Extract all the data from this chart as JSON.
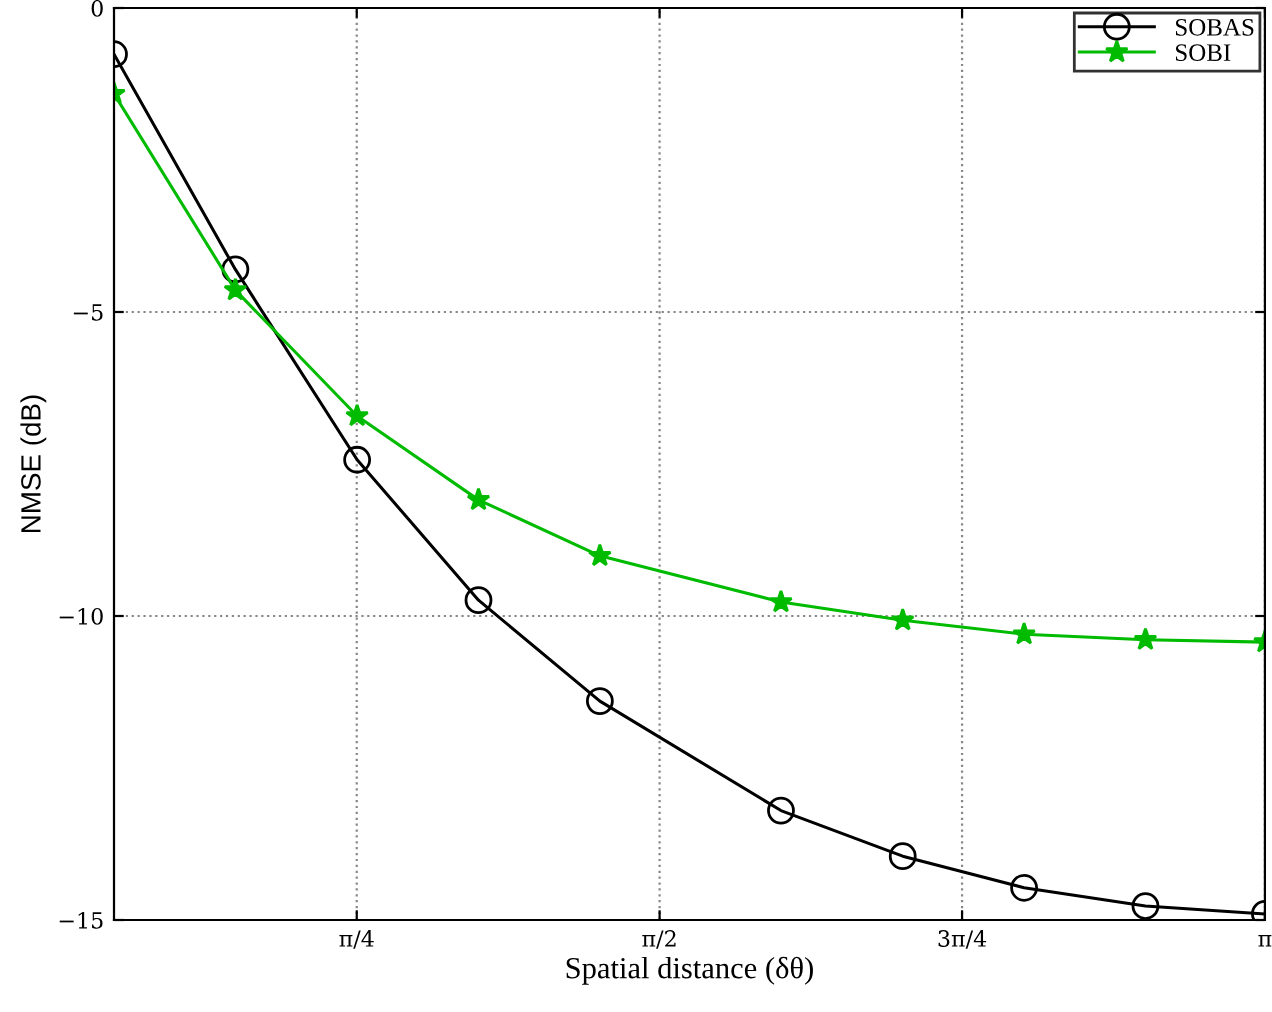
{
  "chart_data": {
    "type": "line",
    "xlabel": "Spatial distance (δθ)",
    "ylabel": "NMSE (dB)",
    "xlim": [
      0.155,
      3.142
    ],
    "ylim": [
      -15,
      0
    ],
    "xticks": [
      {
        "value": 0.785,
        "label": "π/4"
      },
      {
        "value": 1.571,
        "label": "π/2"
      },
      {
        "value": 2.356,
        "label": "3π/4"
      },
      {
        "value": 3.142,
        "label": "π"
      }
    ],
    "yticks": [
      {
        "value": -15,
        "label": "−15"
      },
      {
        "value": -10,
        "label": "−10"
      },
      {
        "value": -5,
        "label": "−5"
      },
      {
        "value": 0,
        "label": "0"
      }
    ],
    "grid": true,
    "legend": "top right",
    "line_style": "solid",
    "series": [
      {
        "name": "SOBAS",
        "color": "#000000",
        "marker": "circle",
        "x": [
          0.155,
          0.47,
          0.786,
          1.101,
          1.416,
          1.886,
          2.202,
          2.517,
          2.832,
          3.142
        ],
        "values": [
          -0.76,
          -4.3,
          -7.43,
          -9.74,
          -11.4,
          -13.2,
          -13.95,
          -14.47,
          -14.77,
          -14.9
        ]
      },
      {
        "name": "SOBI",
        "color": "#00bb00",
        "marker": "star",
        "x": [
          0.155,
          0.47,
          0.786,
          1.101,
          1.416,
          1.886,
          2.202,
          2.517,
          2.832,
          3.142
        ],
        "values": [
          -1.41,
          -4.64,
          -6.71,
          -8.09,
          -9.01,
          -9.77,
          -10.07,
          -10.3,
          -10.39,
          -10.43
        ]
      }
    ]
  }
}
